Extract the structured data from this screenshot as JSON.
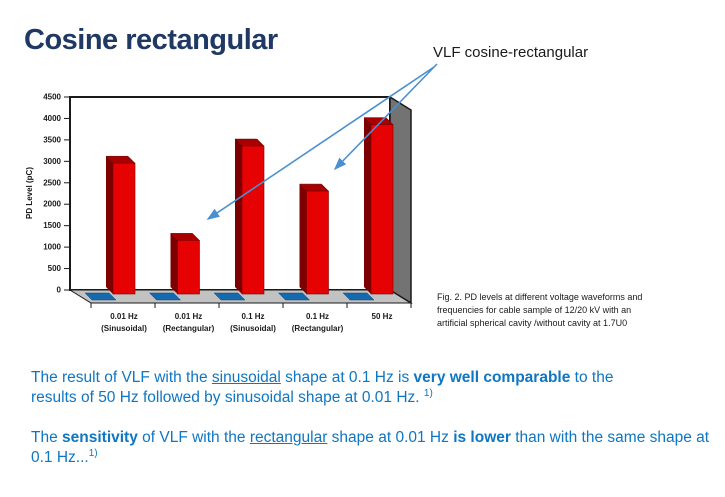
{
  "slide": {
    "title": "Cosine rectangular",
    "title_color": "#1f3864",
    "background": "#ffffff"
  },
  "annotation": {
    "label": "VLF cosine-rectangular",
    "arrow_color": "#4a8fd0",
    "targets": [
      "0.01 Hz (Rectangular) bar",
      "0.1 Hz (Rectangular) bar"
    ]
  },
  "chart_data": {
    "type": "bar",
    "style": "3d-clustered-column",
    "title": "",
    "xlabel": "",
    "ylabel": "PD Level (pC)",
    "ylim": [
      0,
      4500
    ],
    "ytick_step": 500,
    "grid": false,
    "legend_position": "none",
    "categories": [
      [
        "0.01 Hz",
        "(Sinusoidal)"
      ],
      [
        "0.01 Hz",
        "(Rectangular)"
      ],
      [
        "0.1 Hz",
        "(Sinusoidal)"
      ],
      [
        "0.1 Hz",
        "(Rectangular)"
      ],
      [
        "50 Hz"
      ]
    ],
    "series": [
      {
        "color": "#e60202",
        "values": [
          3050,
          1250,
          3450,
          2400,
          3950
        ]
      },
      {
        "color": "#1669ad",
        "values": [
          0,
          0,
          0,
          0,
          0
        ]
      }
    ]
  },
  "caption": {
    "lines": [
      "Fig. 2. PD levels at different voltage waveforms and",
      "frequencies for cable sample of 12/20 kV with an",
      "artificial spherical cavity /without cavity at 1.7U0"
    ]
  },
  "paragraphs": [
    {
      "segments": [
        {
          "t": "The result of VLF with the "
        },
        {
          "t": "sinusoidal",
          "u": true
        },
        {
          "t": " shape at 0.1 Hz is "
        },
        {
          "t": "very well comparable",
          "b": true
        },
        {
          "t": " to the results of 50 Hz followed by sinusoidal shape at 0.01 Hz. "
        },
        {
          "t": "1)",
          "sup": true
        }
      ]
    },
    {
      "segments": [
        {
          "t": "The "
        },
        {
          "t": "sensitivity",
          "b": true
        },
        {
          "t": " of VLF with the "
        },
        {
          "t": "rectangular",
          "u": true
        },
        {
          "t": " shape at 0.01 Hz "
        },
        {
          "t": "is lower",
          "b": true
        },
        {
          "t": " than with the same shape at 0.1 Hz..."
        },
        {
          "t": "1)",
          "sup": true
        }
      ]
    }
  ],
  "colors": {
    "body_text": "#0e76c2",
    "bar_red": "#e60202",
    "bar_red_dark": "#7c0000",
    "bar_red_top": "#a80000",
    "tile_blue": "#1669ad",
    "floor_gray": "#c2c2c2",
    "wall_gray": "#737373",
    "axis_text": "#1a1a1a"
  }
}
